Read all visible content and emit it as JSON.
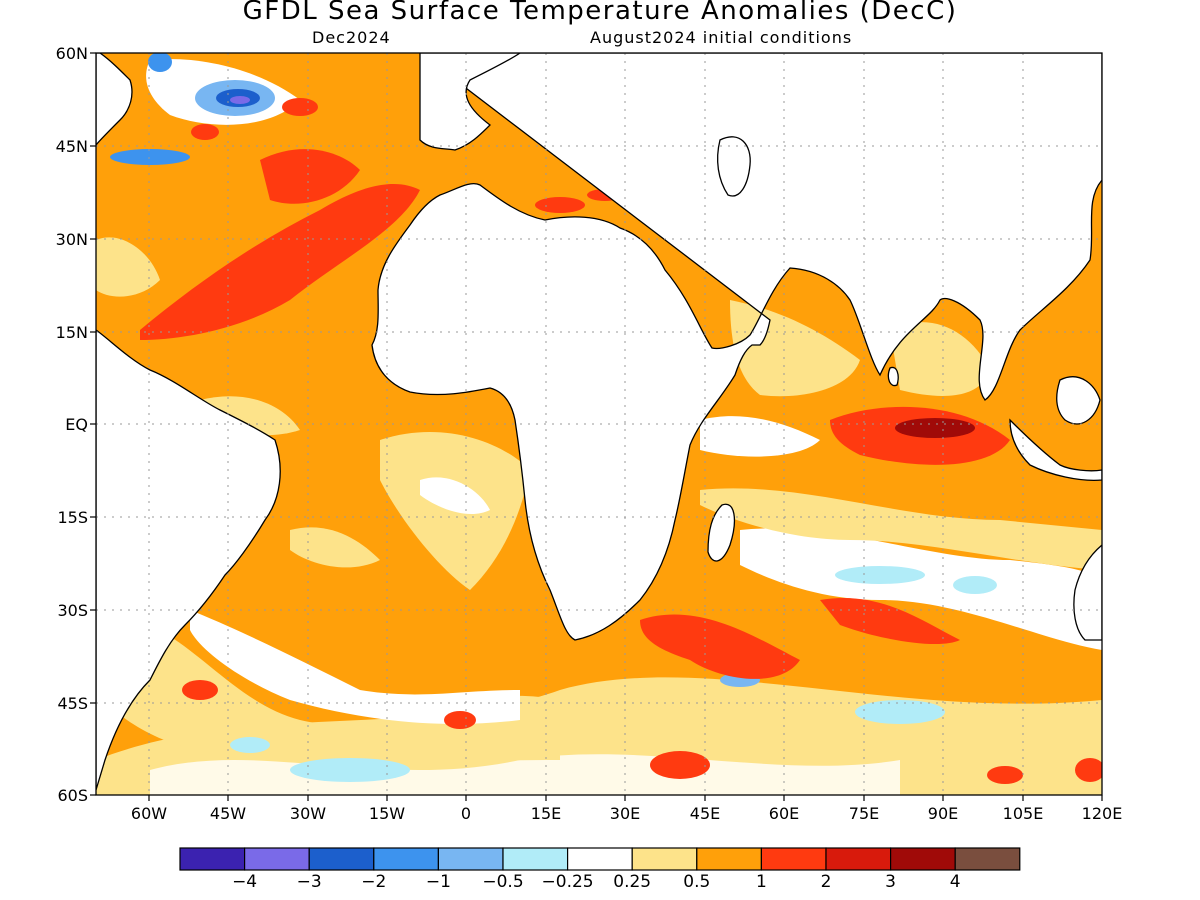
{
  "title": "GFDL Sea Surface Temperature Anomalies (DecC)",
  "subtitle_left": "Dec2024",
  "subtitle_right": "August2024 initial conditions",
  "lat_labels": [
    "60N",
    "45N",
    "30N",
    "15N",
    "EQ",
    "15S",
    "30S",
    "45S",
    "60S"
  ],
  "lon_labels": [
    "60W",
    "45W",
    "30W",
    "15W",
    "0",
    "15E",
    "30E",
    "45E",
    "60E",
    "75E",
    "90E",
    "105E",
    "120E"
  ],
  "map_extent": {
    "lon_min": -70,
    "lon_max": 120,
    "lat_min": -60,
    "lat_max": 60
  },
  "colorbar": {
    "colors": [
      "#3b22b0",
      "#7a6ae8",
      "#1c5fcc",
      "#3d93ee",
      "#78b6f2",
      "#b1ecf8",
      "#ffffff",
      "#fde38a",
      "#ffa00a",
      "#ff3a10",
      "#d81a0c",
      "#a00a08",
      "#7a4e3e"
    ],
    "labels": [
      "-4",
      "-3",
      "-2",
      "-1",
      "-0.5",
      "-0.25",
      "0.25",
      "0.5",
      "1",
      "2",
      "3",
      "4"
    ]
  },
  "colors": {
    "land": "#ffffff",
    "coast": "#000000",
    "grid": "#999999"
  }
}
